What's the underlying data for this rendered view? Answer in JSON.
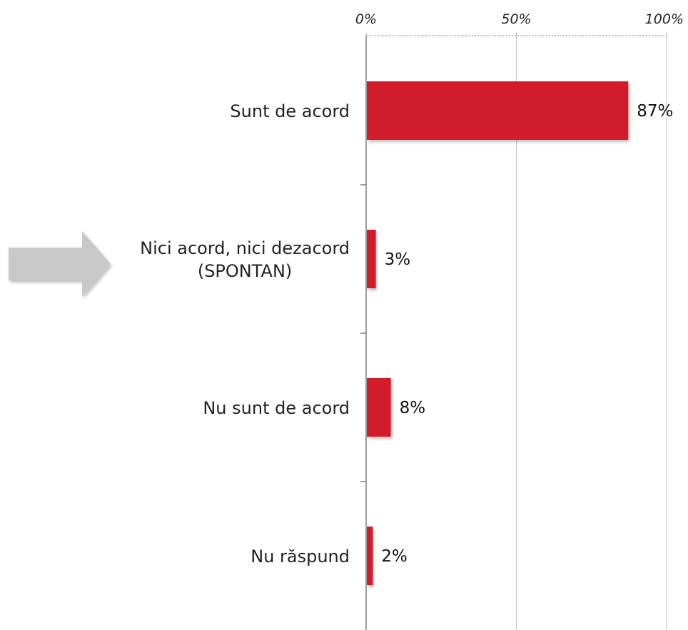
{
  "chart_data": {
    "type": "bar",
    "orientation": "horizontal",
    "title": "",
    "xlabel": "",
    "ylabel": "",
    "xlim": [
      0,
      100
    ],
    "x_ticks": [
      {
        "value": 0,
        "label": "0%"
      },
      {
        "value": 50,
        "label": "50%"
      },
      {
        "value": 100,
        "label": "100%"
      }
    ],
    "categories": [
      [
        "Sunt de acord"
      ],
      [
        "Nici acord, nici dezacord",
        "(SPONTAN)"
      ],
      [
        "Nu sunt de acord"
      ],
      [
        "Nu răspund"
      ]
    ],
    "values": [
      87,
      3,
      8,
      2
    ],
    "value_labels": [
      "87%",
      "3%",
      "8%",
      "2%"
    ],
    "bar_color": "#d21f2b",
    "axis_color": "#7f7f7f",
    "grid": true,
    "legend": "none",
    "annotation": {
      "shape": "arrow-right",
      "color": "#c8c8c8",
      "points_to": "Nici acord, nici dezacord (SPONTAN)"
    }
  }
}
